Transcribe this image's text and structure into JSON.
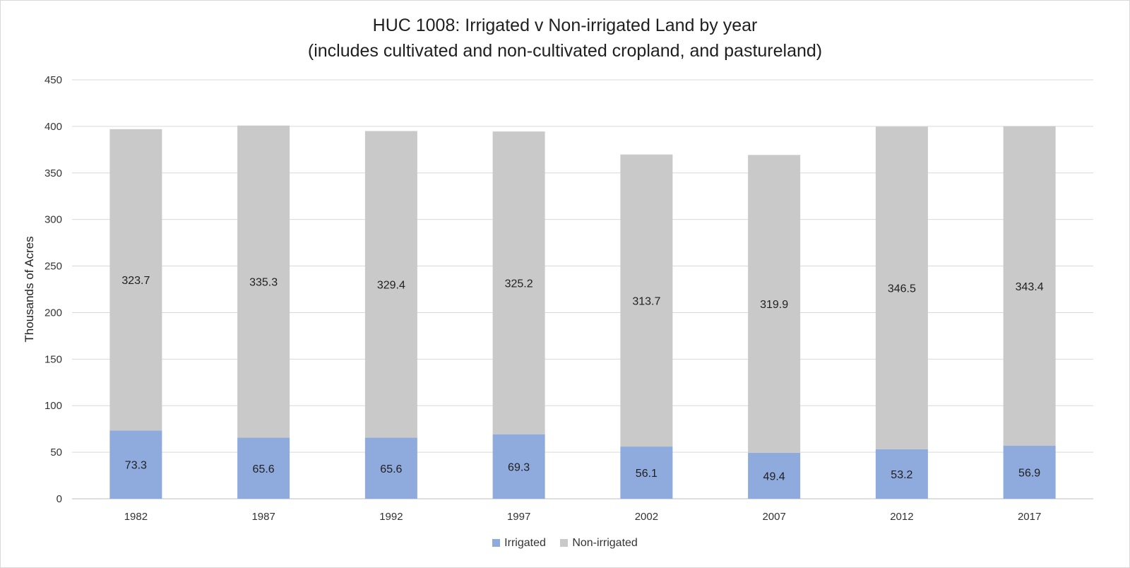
{
  "chart_data": {
    "type": "bar",
    "stacked": true,
    "title": "HUC 1008: Irrigated v Non-irrigated Land by year",
    "subtitle": "(includes cultivated and non-cultivated cropland, and pastureland)",
    "xlabel": "",
    "ylabel": "Thousands of Acres",
    "ylim": [
      0,
      450
    ],
    "ytick_step": 50,
    "yticks": [
      "0",
      "50",
      "100",
      "150",
      "200",
      "250",
      "300",
      "350",
      "400",
      "450"
    ],
    "categories": [
      "1982",
      "1987",
      "1992",
      "1997",
      "2002",
      "2007",
      "2012",
      "2017"
    ],
    "series": [
      {
        "name": "Irrigated",
        "color": "#8faadc",
        "values": [
          73.3,
          65.6,
          65.6,
          69.3,
          56.1,
          49.4,
          53.2,
          56.9
        ],
        "labels": [
          "73.3",
          "65.6",
          "65.6",
          "69.3",
          "56.1",
          "49.4",
          "53.2",
          "56.9"
        ]
      },
      {
        "name": "Non-irrigated",
        "color": "#c9c9c9",
        "values": [
          323.7,
          335.3,
          329.4,
          325.2,
          313.7,
          319.9,
          346.5,
          343.4
        ],
        "labels": [
          "323.7",
          "335.3",
          "329.4",
          "325.2",
          "313.7",
          "319.9",
          "346.5",
          "343.4"
        ]
      }
    ],
    "grid": true,
    "legend_position": "bottom"
  }
}
